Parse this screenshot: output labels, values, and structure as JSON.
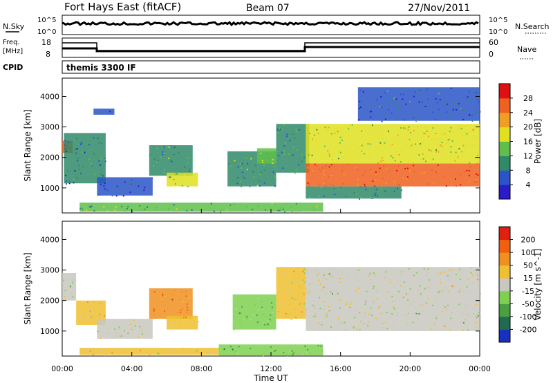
{
  "header": {
    "station": "Fort Hays East (fitACF)",
    "beam": "Beam 07",
    "date": "27/Nov/2011"
  },
  "aux_panels": {
    "nsky_label": "N.Sky",
    "nsky_ticks": [
      "10^5",
      "10^0"
    ],
    "nsearch_label": "N.Search",
    "nsearch_ticks": [
      "10^5",
      "10^0"
    ],
    "freq_label": "Freq.",
    "freq_unit": "[MHz]",
    "freq_ticks": [
      "18",
      "8"
    ],
    "nave_label": "Nave",
    "nave_ticks": [
      "60",
      "0"
    ],
    "cpid_label": "CPID",
    "cpid_value": "themis 3300 IF"
  },
  "colors": {
    "power_scale": [
      "#2a1cc8",
      "#2a55c8",
      "#2f8a6a",
      "#5fbf4a",
      "#e0e020",
      "#f0a020",
      "#f06020",
      "#e01010"
    ],
    "velocity_scale": [
      "#1830c0",
      "#1f6a50",
      "#4aa040",
      "#7ed050",
      "#c8c8c0",
      "#f0c030",
      "#f09020",
      "#f06010",
      "#e02010"
    ]
  },
  "chart_data": [
    {
      "type": "heatmap",
      "name": "power",
      "ylabel": "Slant Range [km]",
      "xlabel": "",
      "x_ticks": [
        "00:00",
        "04:00",
        "08:00",
        "12:00",
        "16:00",
        "20:00",
        "00:00"
      ],
      "x_range_hours": [
        0,
        24
      ],
      "y_ticks": [
        "4000",
        "3000",
        "2000",
        "1000"
      ],
      "ylim": [
        180,
        4600
      ],
      "colorbar_label": "Power [dB]",
      "colorbar_ticks": [
        "28",
        "24",
        "20",
        "16",
        "12",
        "8",
        "4"
      ],
      "colorbar_range": [
        0,
        32
      ],
      "regions": [
        {
          "t0": 0.0,
          "t1": 0.6,
          "r0": 2150,
          "r1": 2550,
          "v": 27
        },
        {
          "t0": 0.1,
          "t1": 2.5,
          "r0": 1150,
          "r1": 2800,
          "v": 8
        },
        {
          "t0": 2.0,
          "t1": 5.2,
          "r0": 750,
          "r1": 1350,
          "v": 5
        },
        {
          "t0": 1.8,
          "t1": 3.0,
          "r0": 3400,
          "r1": 3600,
          "v": 6
        },
        {
          "t0": 5.0,
          "t1": 7.5,
          "r0": 1400,
          "r1": 2400,
          "v": 11
        },
        {
          "t0": 6.0,
          "t1": 7.8,
          "r0": 1050,
          "r1": 1500,
          "v": 16
        },
        {
          "t0": 9.5,
          "t1": 12.3,
          "r0": 1050,
          "r1": 2200,
          "v": 11
        },
        {
          "t0": 11.2,
          "t1": 12.3,
          "r0": 1800,
          "r1": 2300,
          "v": 15
        },
        {
          "t0": 12.3,
          "t1": 14.2,
          "r0": 1500,
          "r1": 3100,
          "v": 10
        },
        {
          "t0": 14.0,
          "t1": 24.0,
          "r0": 1800,
          "r1": 3100,
          "v": 17
        },
        {
          "t0": 14.0,
          "t1": 24.0,
          "r0": 1050,
          "r1": 1800,
          "v": 26
        },
        {
          "t0": 14.0,
          "t1": 19.5,
          "r0": 650,
          "r1": 1050,
          "v": 9
        },
        {
          "t0": 1.0,
          "t1": 15.0,
          "r0": 220,
          "r1": 520,
          "v": 12
        },
        {
          "t0": 17.0,
          "t1": 24.0,
          "r0": 3200,
          "r1": 4300,
          "v": 7
        }
      ]
    },
    {
      "type": "heatmap",
      "name": "velocity",
      "ylabel": "Slant Range [km]",
      "xlabel": "Time UT",
      "x_ticks": [
        "00:00",
        "04:00",
        "08:00",
        "12:00",
        "16:00",
        "20:00",
        "00:00"
      ],
      "x_range_hours": [
        0,
        24
      ],
      "y_ticks": [
        "4000",
        "3000",
        "2000",
        "1000"
      ],
      "ylim": [
        180,
        4600
      ],
      "colorbar_label": "Velocity [m s^-1]",
      "colorbar_ticks": [
        "200",
        "100",
        "50",
        "15",
        "-15",
        "-50",
        "-100",
        "-200"
      ],
      "colorbar_range": [
        -250,
        250
      ],
      "regions": [
        {
          "t0": 0.0,
          "t1": 0.8,
          "r0": 2000,
          "r1": 2900,
          "v": 0
        },
        {
          "t0": 0.8,
          "t1": 2.5,
          "r0": 1200,
          "r1": 2000,
          "v": 30
        },
        {
          "t0": 2.0,
          "t1": 5.2,
          "r0": 750,
          "r1": 1400,
          "v": 0
        },
        {
          "t0": 5.0,
          "t1": 7.5,
          "r0": 1400,
          "r1": 2400,
          "v": 120
        },
        {
          "t0": 6.0,
          "t1": 7.8,
          "r0": 1050,
          "r1": 1500,
          "v": 60
        },
        {
          "t0": 9.8,
          "t1": 12.3,
          "r0": 1050,
          "r1": 2200,
          "v": -60
        },
        {
          "t0": 12.3,
          "t1": 14.0,
          "r0": 1400,
          "r1": 3100,
          "v": 30
        },
        {
          "t0": 14.0,
          "t1": 24.0,
          "r0": 1000,
          "r1": 3100,
          "v": 0
        },
        {
          "t0": 1.0,
          "t1": 9.0,
          "r0": 220,
          "r1": 450,
          "v": 40
        },
        {
          "t0": 9.0,
          "t1": 15.0,
          "r0": 200,
          "r1": 560,
          "v": -60
        }
      ]
    }
  ]
}
